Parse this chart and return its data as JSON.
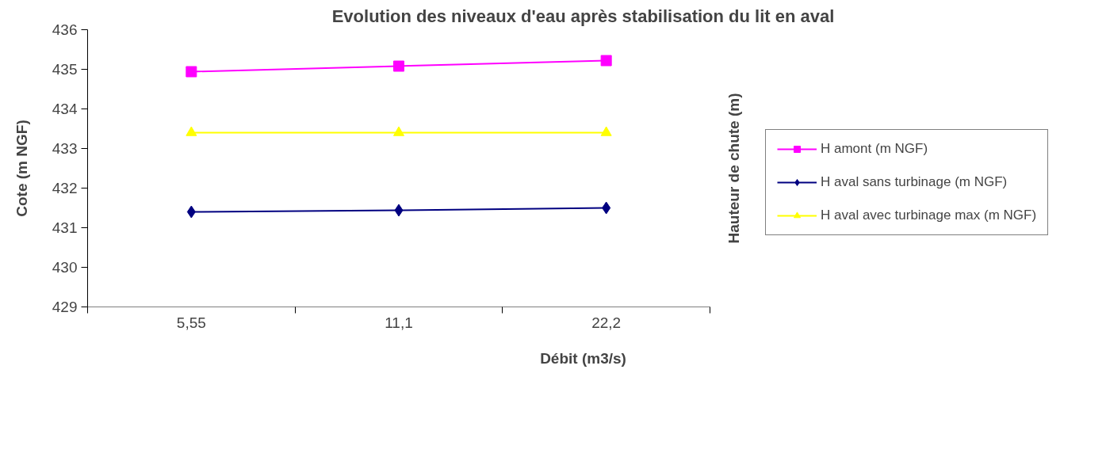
{
  "chart_data": {
    "type": "line",
    "title": "Evolution des niveaux d'eau après stabilisation du lit en aval",
    "xlabel": "Débit (m3/s)",
    "ylabel": "Cote (m NGF)",
    "y2label": "Hauteur de chute (m)",
    "categories": [
      "5,55",
      "11,1",
      "22,2"
    ],
    "series": [
      {
        "name": "H amont (m NGF)",
        "color": "#ff00ff",
        "marker": "square",
        "values": [
          434.94,
          435.08,
          435.22
        ]
      },
      {
        "name": "H aval sans turbinage (m NGF)",
        "color": "#000080",
        "marker": "diamond",
        "values": [
          431.4,
          431.44,
          431.5
        ]
      },
      {
        "name": "H aval avec turbinage max (m NGF)",
        "color": "#ffff00",
        "marker": "triangle",
        "values": [
          433.4,
          433.4,
          433.4
        ]
      }
    ],
    "ylim": [
      429,
      436
    ],
    "yticks": [
      429,
      430,
      431,
      432,
      433,
      434,
      435,
      436
    ],
    "grid": false,
    "legend": "right",
    "line_style": "solid"
  }
}
